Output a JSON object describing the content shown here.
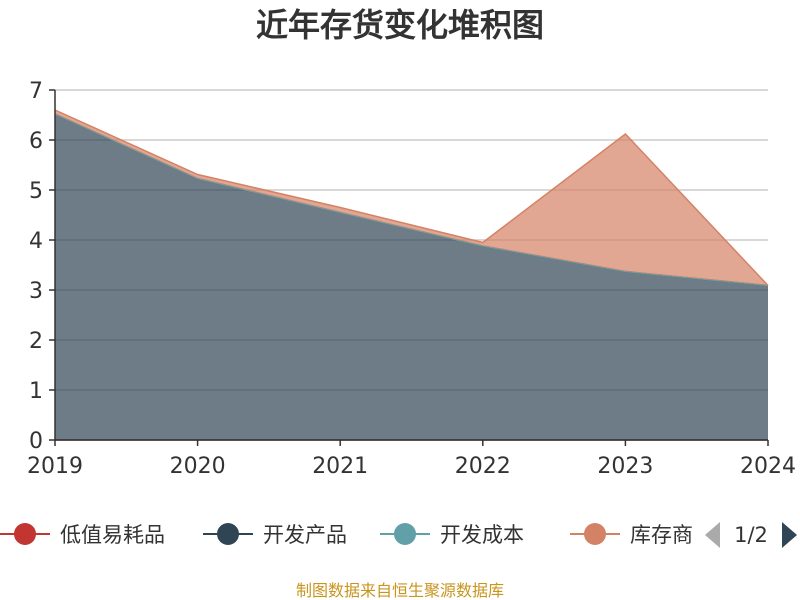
{
  "chart_data": {
    "type": "area",
    "stacked": true,
    "title": "近年存货变化堆积图",
    "x": [
      "2019",
      "2020",
      "2021",
      "2022",
      "2023",
      "2024"
    ],
    "ylim": [
      0,
      7
    ],
    "yticks": [
      "0",
      "1",
      "2",
      "3",
      "4",
      "5",
      "6",
      "7"
    ],
    "grid": true,
    "series": [
      {
        "name": "低值易耗品",
        "values": [
          0,
          0,
          0,
          0,
          0,
          0
        ]
      },
      {
        "name": "开发产品",
        "values": [
          6.52,
          5.23,
          4.55,
          3.88,
          3.37,
          3.09
        ]
      },
      {
        "name": "开发成本",
        "values": [
          0,
          0,
          0,
          0,
          0,
          0
        ]
      },
      {
        "name": "库存商",
        "values": [
          0.08,
          0.08,
          0.1,
          0.07,
          2.75,
          0.0
        ]
      }
    ],
    "legend_position": "bottom",
    "legend_page": "1/2",
    "source": "制图数据来自恒生聚源数据库"
  },
  "colors": {
    "低值易耗品": "#c23531",
    "开发产品": "#2f4554",
    "开发成本": "#61a0a8",
    "库存商": "#d48265",
    "pager_active": "#2f4554",
    "pager_inactive": "#aaaaaa"
  }
}
